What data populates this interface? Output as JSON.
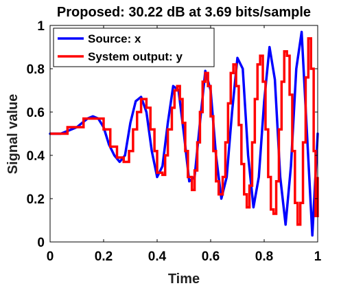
{
  "chart_data": {
    "type": "line",
    "title": "Proposed: 30.22 dB at 3.69 bits/sample",
    "xlabel": "Time",
    "ylabel": "Signal value",
    "xlim": [
      0,
      1
    ],
    "ylim": [
      0,
      1
    ],
    "xticks": [
      0,
      0.2,
      0.4,
      0.6,
      0.8,
      1
    ],
    "xtick_labels": [
      "0",
      "0.2",
      "0.4",
      "0.6",
      "0.8",
      "1"
    ],
    "yticks": [
      0,
      0.2,
      0.4,
      0.6,
      0.8,
      1
    ],
    "ytick_labels": [
      "0",
      "0.2",
      "0.4",
      "0.6",
      "0.8",
      "1"
    ],
    "grid": false,
    "legend_position": "top-left",
    "series": [
      {
        "name": "Source: x",
        "color": "#0000ff",
        "signal": "0.5 + 0.5*t*sin(2*pi*(10*t + 1.5*t^2)) with small noise",
        "x": [
          0,
          0.02,
          0.04,
          0.06,
          0.08,
          0.1,
          0.12,
          0.14,
          0.16,
          0.18,
          0.2,
          0.22,
          0.24,
          0.26,
          0.28,
          0.3,
          0.32,
          0.34,
          0.36,
          0.38,
          0.4,
          0.42,
          0.44,
          0.46,
          0.48,
          0.5,
          0.52,
          0.54,
          0.56,
          0.58,
          0.6,
          0.62,
          0.64,
          0.66,
          0.68,
          0.7,
          0.72,
          0.74,
          0.76,
          0.78,
          0.8,
          0.82,
          0.84,
          0.86,
          0.88,
          0.9,
          0.92,
          0.94,
          0.96,
          0.98,
          1.0
        ],
        "y": [
          0.5,
          0.5,
          0.5,
          0.51,
          0.52,
          0.53,
          0.55,
          0.57,
          0.58,
          0.57,
          0.53,
          0.45,
          0.4,
          0.37,
          0.4,
          0.55,
          0.65,
          0.67,
          0.6,
          0.42,
          0.3,
          0.35,
          0.55,
          0.72,
          0.7,
          0.5,
          0.28,
          0.3,
          0.55,
          0.79,
          0.7,
          0.4,
          0.2,
          0.3,
          0.6,
          0.85,
          0.8,
          0.4,
          0.16,
          0.3,
          0.65,
          0.9,
          0.75,
          0.3,
          0.08,
          0.35,
          0.8,
          0.97,
          0.5,
          0.03,
          0.5
        ]
      },
      {
        "name": "System output: y",
        "color": "#ff0000",
        "signal": "step-quantized reconstruction of x",
        "steps": [
          [
            0,
            0.5
          ],
          [
            0.065,
            0.53
          ],
          [
            0.125,
            0.57
          ],
          [
            0.175,
            0.57
          ],
          [
            0.2,
            0.52
          ],
          [
            0.225,
            0.44
          ],
          [
            0.25,
            0.39
          ],
          [
            0.275,
            0.37
          ],
          [
            0.295,
            0.42
          ],
          [
            0.31,
            0.52
          ],
          [
            0.325,
            0.6
          ],
          [
            0.34,
            0.66
          ],
          [
            0.36,
            0.62
          ],
          [
            0.375,
            0.52
          ],
          [
            0.39,
            0.42
          ],
          [
            0.4,
            0.32
          ],
          [
            0.42,
            0.31
          ],
          [
            0.43,
            0.4
          ],
          [
            0.44,
            0.52
          ],
          [
            0.455,
            0.62
          ],
          [
            0.465,
            0.7
          ],
          [
            0.475,
            0.72
          ],
          [
            0.485,
            0.66
          ],
          [
            0.495,
            0.55
          ],
          [
            0.505,
            0.42
          ],
          [
            0.515,
            0.3
          ],
          [
            0.53,
            0.24
          ],
          [
            0.54,
            0.33
          ],
          [
            0.55,
            0.46
          ],
          [
            0.56,
            0.6
          ],
          [
            0.57,
            0.74
          ],
          [
            0.58,
            0.78
          ],
          [
            0.59,
            0.72
          ],
          [
            0.6,
            0.58
          ],
          [
            0.61,
            0.42
          ],
          [
            0.62,
            0.28
          ],
          [
            0.63,
            0.22
          ],
          [
            0.645,
            0.3
          ],
          [
            0.655,
            0.46
          ],
          [
            0.665,
            0.64
          ],
          [
            0.675,
            0.78
          ],
          [
            0.685,
            0.82
          ],
          [
            0.695,
            0.72
          ],
          [
            0.705,
            0.54
          ],
          [
            0.715,
            0.36
          ],
          [
            0.725,
            0.22
          ],
          [
            0.735,
            0.16
          ],
          [
            0.745,
            0.26
          ],
          [
            0.755,
            0.46
          ],
          [
            0.765,
            0.66
          ],
          [
            0.775,
            0.82
          ],
          [
            0.785,
            0.86
          ],
          [
            0.795,
            0.74
          ],
          [
            0.805,
            0.52
          ],
          [
            0.815,
            0.3
          ],
          [
            0.825,
            0.15
          ],
          [
            0.835,
            0.13
          ],
          [
            0.845,
            0.28
          ],
          [
            0.855,
            0.52
          ],
          [
            0.865,
            0.74
          ],
          [
            0.875,
            0.88
          ],
          [
            0.885,
            0.86
          ],
          [
            0.895,
            0.68
          ],
          [
            0.905,
            0.42
          ],
          [
            0.915,
            0.18
          ],
          [
            0.925,
            0.08
          ],
          [
            0.935,
            0.18
          ],
          [
            0.945,
            0.46
          ],
          [
            0.955,
            0.76
          ],
          [
            0.965,
            0.94
          ],
          [
            0.975,
            0.8
          ],
          [
            0.985,
            0.42
          ],
          [
            0.992,
            0.12
          ],
          [
            1.0,
            0.3
          ]
        ]
      }
    ]
  }
}
